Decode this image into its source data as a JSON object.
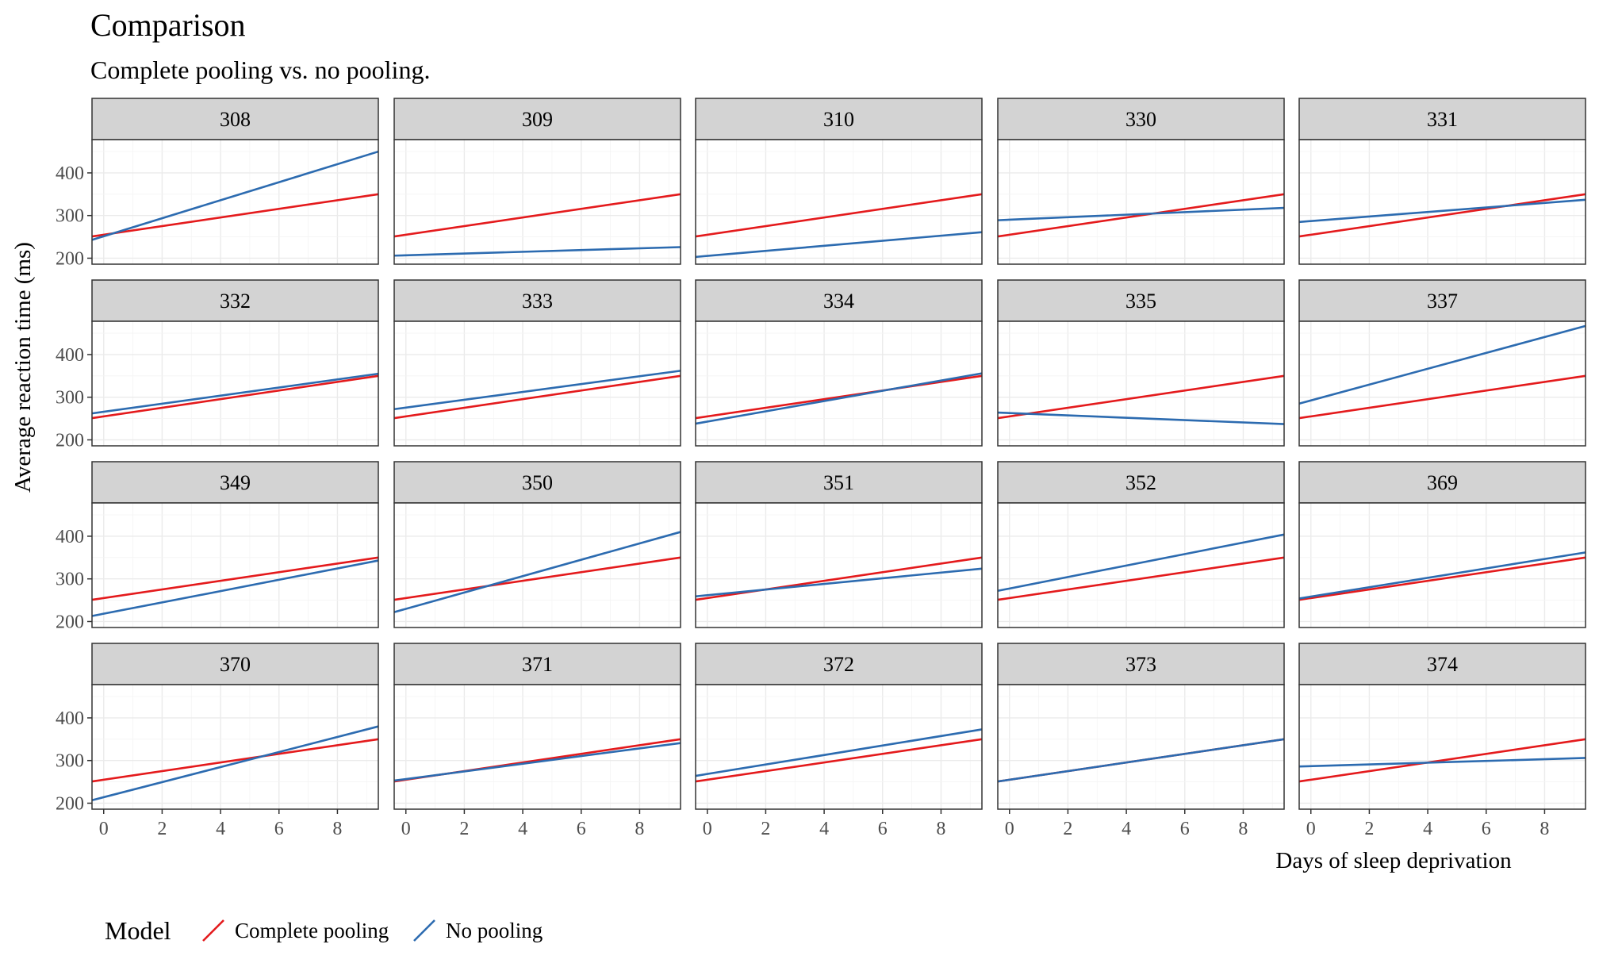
{
  "title": "Comparison",
  "subtitle": "Complete pooling vs. no pooling.",
  "chart_data": {
    "type": "line",
    "xlabel": "Days of sleep deprivation",
    "ylabel": "Average reaction time (ms)",
    "xlim": [
      -0.4,
      9.4
    ],
    "ylim": [
      186,
      478
    ],
    "xticks": [
      "0",
      "2",
      "4",
      "6",
      "8"
    ],
    "yticks": [
      "200",
      "300",
      "400"
    ],
    "grid": true,
    "legend_position": "bottom-left",
    "legend_title": "Model",
    "series": [
      {
        "name": "Complete pooling",
        "color": "#e41a1c"
      },
      {
        "name": "No pooling",
        "color": "#2c6bb0"
      }
    ],
    "panels": [
      {
        "subject": "308",
        "complete_pooling": [
          251,
          350
        ],
        "no_pooling": [
          243,
          450
        ]
      },
      {
        "subject": "309",
        "complete_pooling": [
          251,
          350
        ],
        "no_pooling": [
          206,
          226
        ]
      },
      {
        "subject": "310",
        "complete_pooling": [
          251,
          350
        ],
        "no_pooling": [
          203,
          261
        ]
      },
      {
        "subject": "330",
        "complete_pooling": [
          251,
          350
        ],
        "no_pooling": [
          289,
          318
        ]
      },
      {
        "subject": "331",
        "complete_pooling": [
          251,
          350
        ],
        "no_pooling": [
          285,
          337
        ]
      },
      {
        "subject": "332",
        "complete_pooling": [
          251,
          350
        ],
        "no_pooling": [
          262,
          355
        ]
      },
      {
        "subject": "333",
        "complete_pooling": [
          251,
          350
        ],
        "no_pooling": [
          272,
          362
        ]
      },
      {
        "subject": "334",
        "complete_pooling": [
          251,
          350
        ],
        "no_pooling": [
          238,
          356
        ]
      },
      {
        "subject": "335",
        "complete_pooling": [
          251,
          350
        ],
        "no_pooling": [
          264,
          237
        ]
      },
      {
        "subject": "337",
        "complete_pooling": [
          251,
          350
        ],
        "no_pooling": [
          285,
          467
        ]
      },
      {
        "subject": "349",
        "complete_pooling": [
          251,
          350
        ],
        "no_pooling": [
          213,
          343
        ]
      },
      {
        "subject": "350",
        "complete_pooling": [
          251,
          350
        ],
        "no_pooling": [
          222,
          410
        ]
      },
      {
        "subject": "351",
        "complete_pooling": [
          251,
          350
        ],
        "no_pooling": [
          259,
          324
        ]
      },
      {
        "subject": "352",
        "complete_pooling": [
          251,
          350
        ],
        "no_pooling": [
          272,
          404
        ]
      },
      {
        "subject": "369",
        "complete_pooling": [
          251,
          350
        ],
        "no_pooling": [
          254,
          362
        ]
      },
      {
        "subject": "370",
        "complete_pooling": [
          251,
          350
        ],
        "no_pooling": [
          207,
          380
        ]
      },
      {
        "subject": "371",
        "complete_pooling": [
          251,
          350
        ],
        "no_pooling": [
          253,
          341
        ]
      },
      {
        "subject": "372",
        "complete_pooling": [
          251,
          350
        ],
        "no_pooling": [
          264,
          373
        ]
      },
      {
        "subject": "373",
        "complete_pooling": [
          251,
          350
        ],
        "no_pooling": [
          251,
          350
        ]
      },
      {
        "subject": "374",
        "complete_pooling": [
          251,
          350
        ],
        "no_pooling": [
          286,
          306
        ]
      }
    ]
  }
}
